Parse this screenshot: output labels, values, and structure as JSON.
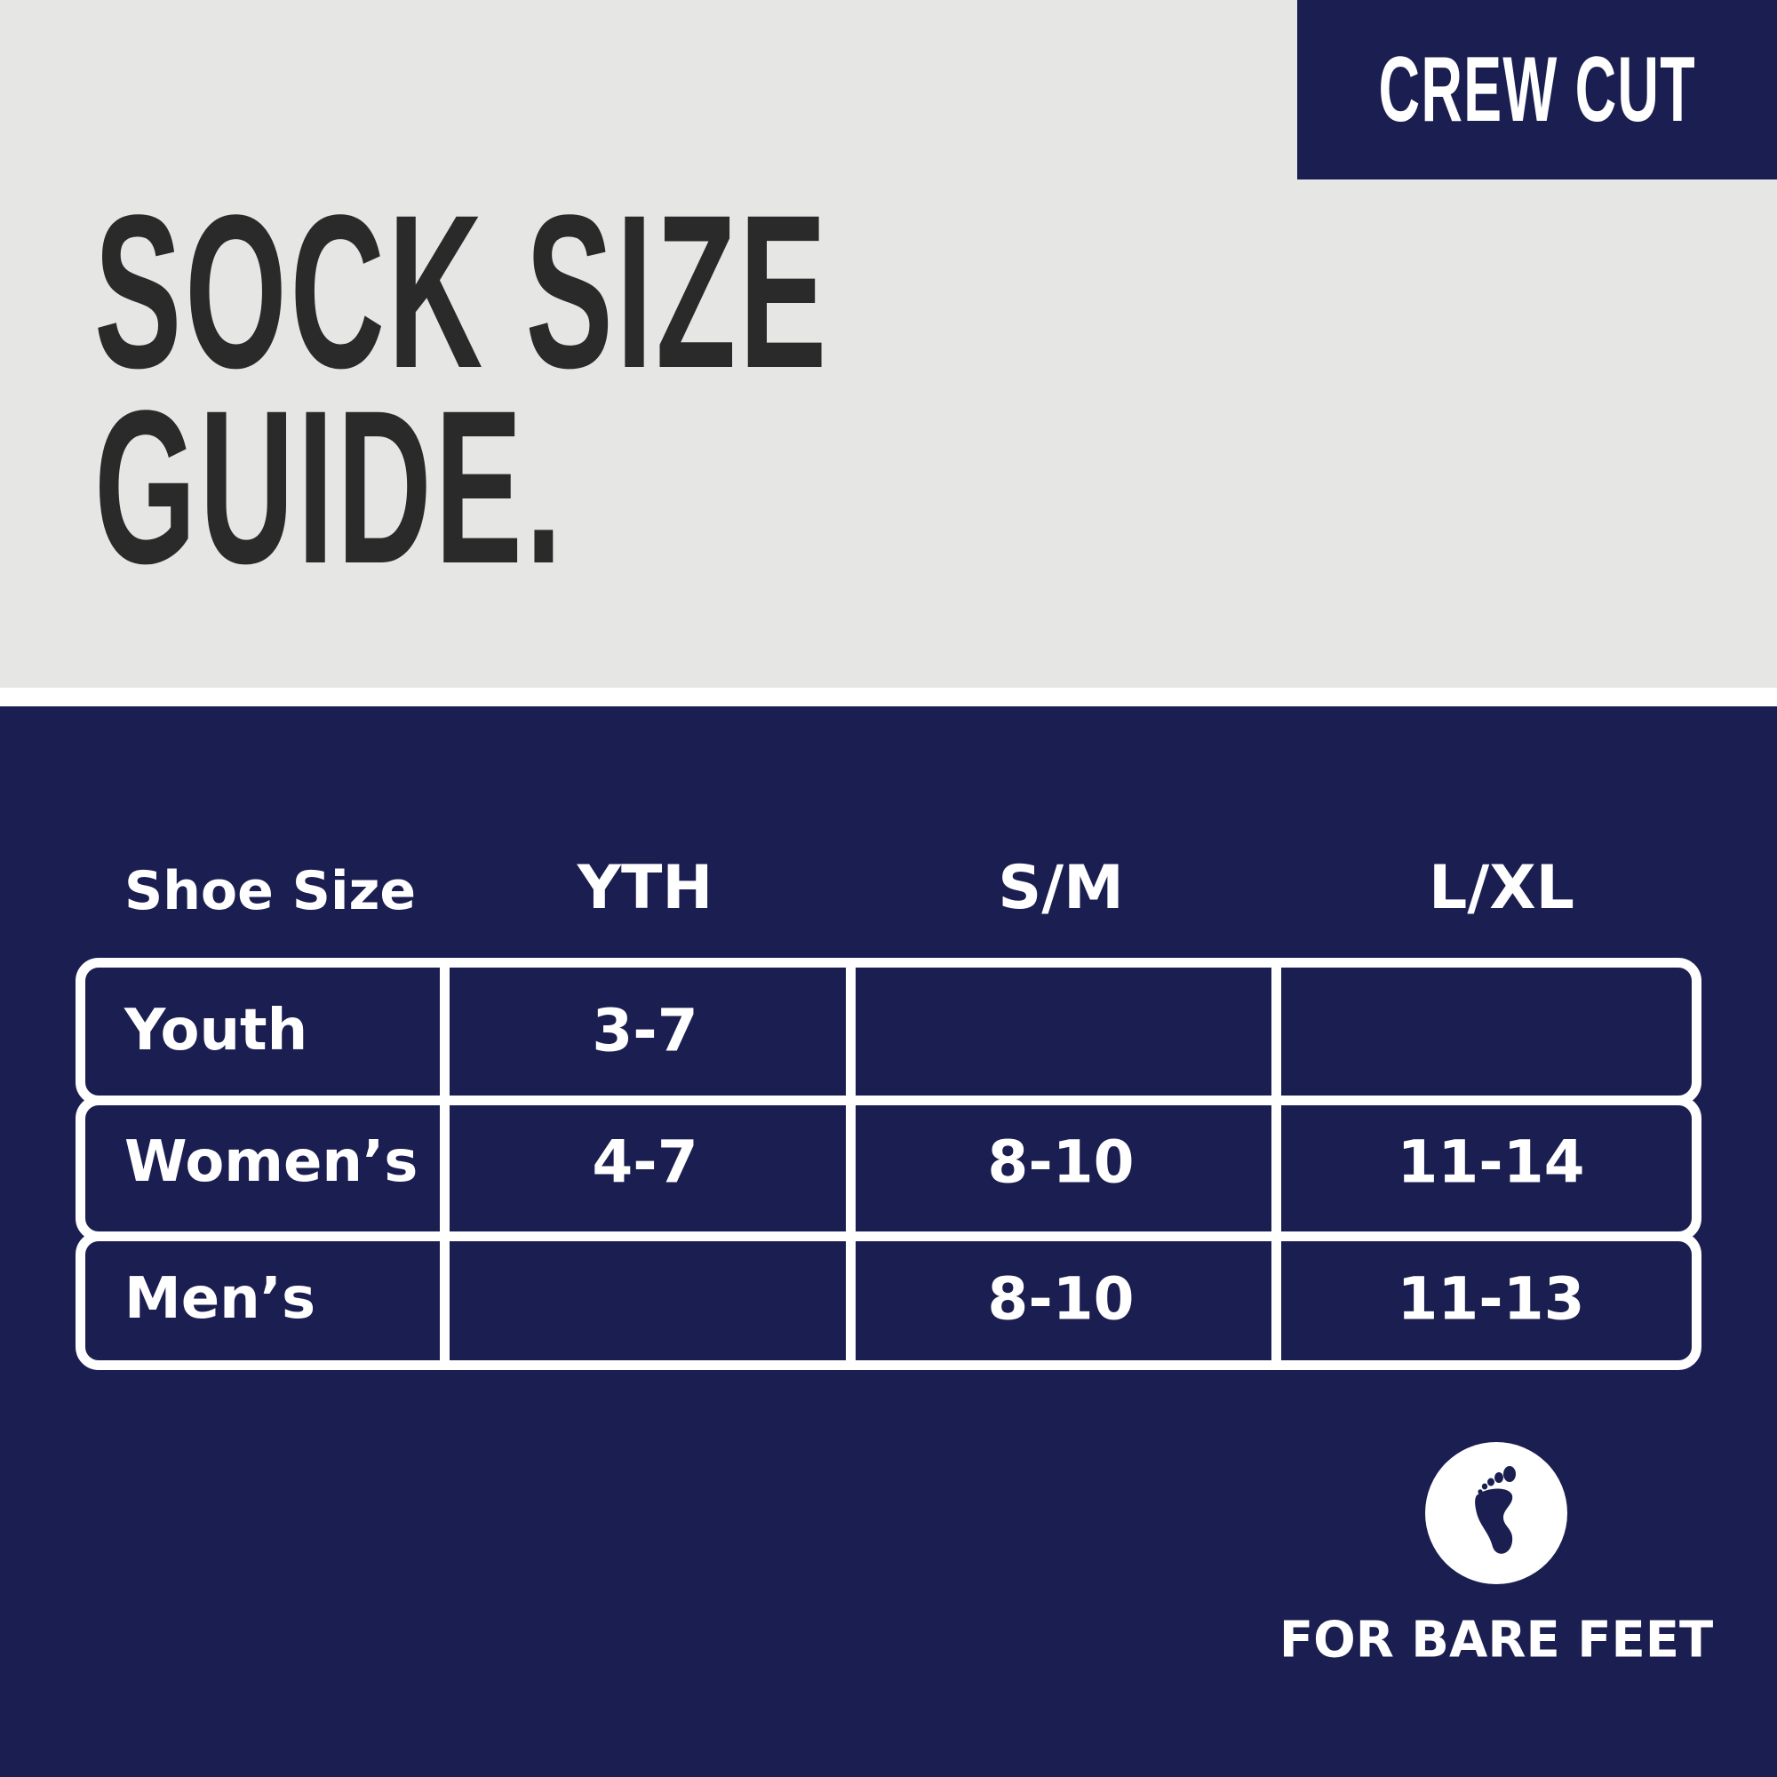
{
  "brand_badge": "CREW CUT",
  "title_line1": "SOCK SIZE",
  "title_line2": "GUIDE.",
  "colors": {
    "navy": "#1b1e50",
    "light_gray": "#e6e6e4",
    "title_text": "#2a2a2a",
    "white": "#ffffff"
  },
  "table": {
    "headers": [
      "Shoe Size",
      "YTH",
      "S/M",
      "L/XL"
    ],
    "rows": [
      {
        "label": "Youth",
        "yth": "3-7",
        "sm": "",
        "lxl": ""
      },
      {
        "label": "Women’s",
        "yth": "4-7",
        "sm": "8-10",
        "lxl": "11-14"
      },
      {
        "label": "Men’s",
        "yth": "",
        "sm": "8-10",
        "lxl": "11-13"
      }
    ]
  },
  "footer": {
    "icon": "bare-foot-icon",
    "label": "FOR BARE FEET"
  }
}
